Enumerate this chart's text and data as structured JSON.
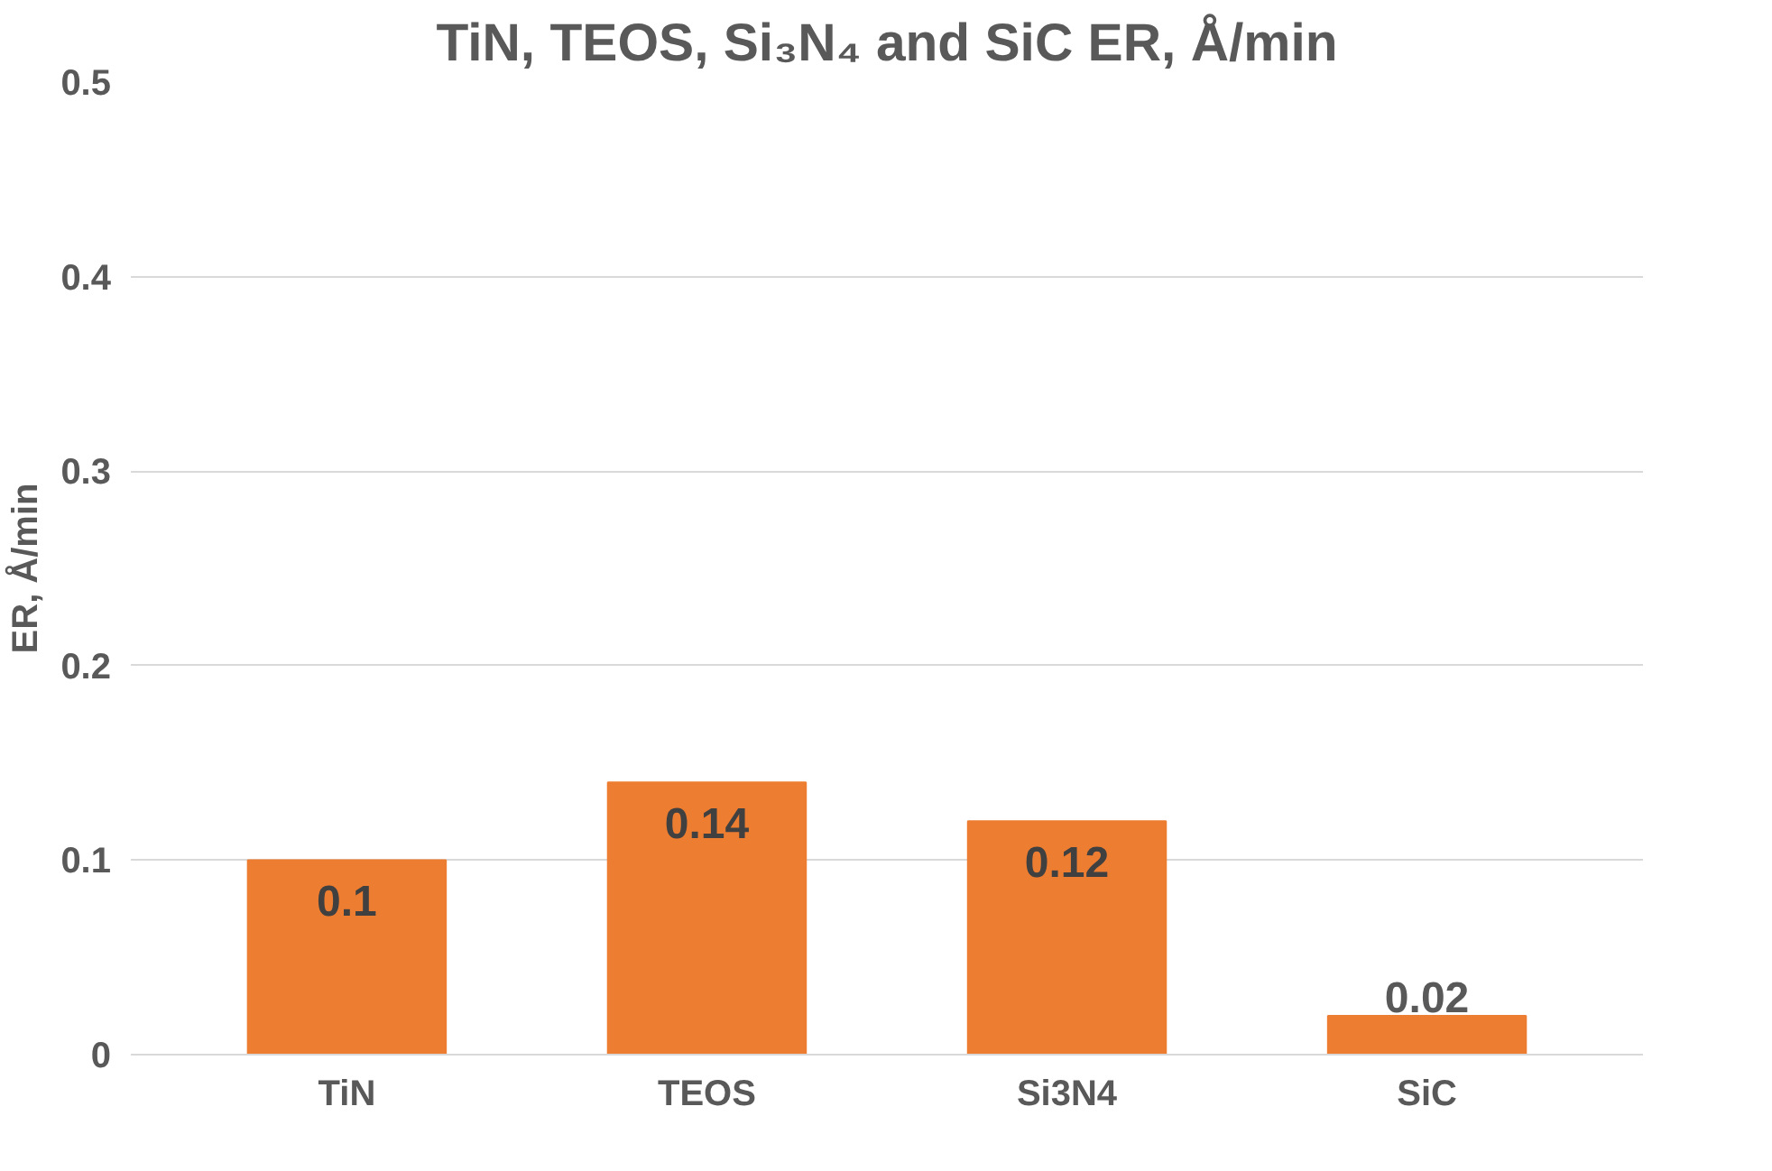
{
  "chart_data": {
    "type": "bar",
    "title": "TiN, TEOS, Si₃N₄ and SiC ER, Å/min",
    "ylabel": "ER, Å/min",
    "categories": [
      "TiN",
      "TEOS",
      "Si3N4",
      "SiC"
    ],
    "values": [
      0.1,
      0.14,
      0.12,
      0.02
    ],
    "color": "#ed7d31",
    "ylim": [
      0,
      0.5
    ],
    "yticks": [
      0,
      0.1,
      0.2,
      0.3,
      0.4,
      0.5
    ],
    "grid": "y",
    "data_labels": true
  }
}
